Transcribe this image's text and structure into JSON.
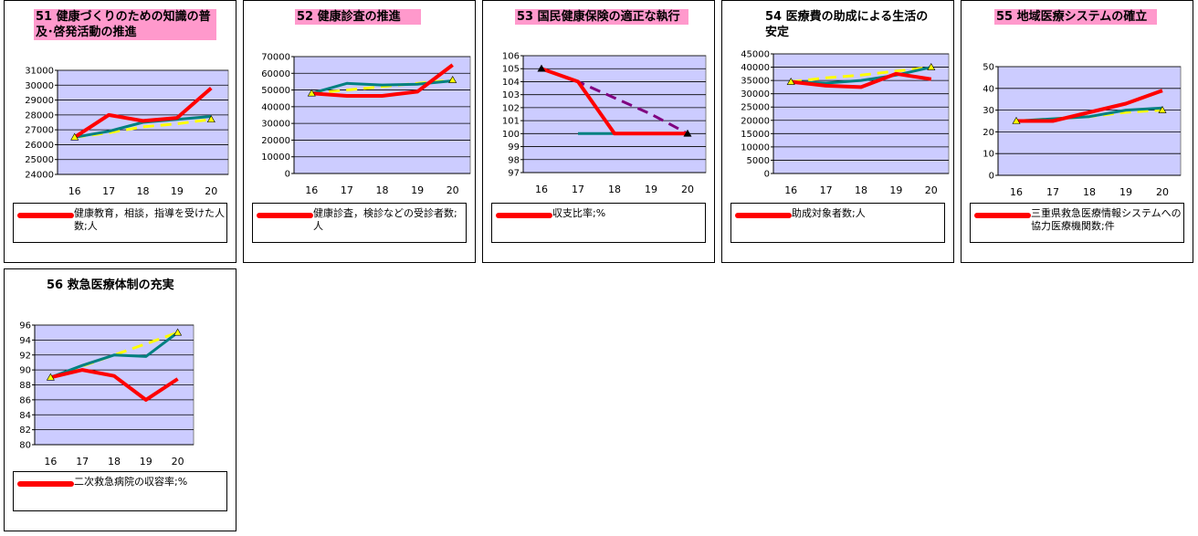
{
  "chart_data": [
    {
      "type": "line",
      "title": "51 健康づくりのための知識の普及･啓発活動の推進",
      "categories": [
        "16",
        "17",
        "18",
        "19",
        "20"
      ],
      "ylim": [
        24000,
        31000
      ],
      "yticks": [
        24000,
        25000,
        26000,
        27000,
        28000,
        29000,
        30000,
        31000
      ],
      "grid": true,
      "series": [
        {
          "name": "健康教育，相談，指導を受けた人数;人",
          "color": "#ff0000",
          "style": "solid",
          "values": [
            26500,
            28000,
            27600,
            27800,
            29800
          ]
        },
        {
          "color": "#008080",
          "style": "solid",
          "values": [
            26500,
            26900,
            27500,
            27700,
            27900
          ]
        },
        {
          "color": "#ffff00",
          "style": "dashed",
          "values": [
            26500,
            26800,
            27200,
            27400,
            27700
          ]
        }
      ]
    },
    {
      "type": "line",
      "title": "52 健康診査の推進",
      "categories": [
        "16",
        "17",
        "18",
        "19",
        "20"
      ],
      "ylim": [
        0,
        70000
      ],
      "yticks": [
        0,
        10000,
        20000,
        30000,
        40000,
        50000,
        60000,
        70000
      ],
      "grid": true,
      "series": [
        {
          "name": "健康診査，検診などの受診者数;人",
          "color": "#ff0000",
          "style": "solid",
          "values": [
            48000,
            46500,
            46500,
            49000,
            65000
          ]
        },
        {
          "color": "#008080",
          "style": "solid",
          "values": [
            48000,
            54000,
            53000,
            53500,
            55500
          ]
        },
        {
          "color": "#ffff00",
          "style": "dashed",
          "values": [
            48000,
            50000,
            52000,
            54000,
            56000
          ]
        }
      ]
    },
    {
      "type": "line",
      "title": "53 国民健康保険の適正な執行",
      "categories": [
        "16",
        "17",
        "18",
        "19",
        "20"
      ],
      "ylim": [
        97,
        106
      ],
      "yticks": [
        97,
        98,
        99,
        100,
        101,
        102,
        103,
        104,
        105,
        106
      ],
      "grid": true,
      "series": [
        {
          "name": "収支比率;%",
          "color": "#ff0000",
          "style": "solid",
          "values": [
            105,
            104,
            100,
            100,
            100
          ]
        },
        {
          "color": "#008080",
          "style": "solid",
          "values": [
            null,
            100,
            100,
            100,
            100
          ]
        },
        {
          "color": "#800080",
          "style": "dashed",
          "values": [
            105,
            104,
            102.75,
            101.5,
            100
          ]
        }
      ]
    },
    {
      "type": "line",
      "title": "54 医療費の助成による生活の安定",
      "categories": [
        "16",
        "17",
        "18",
        "19",
        "20"
      ],
      "ylim": [
        0,
        45000
      ],
      "yticks": [
        0,
        5000,
        10000,
        15000,
        20000,
        25000,
        30000,
        35000,
        40000,
        45000
      ],
      "grid": true,
      "series": [
        {
          "name": "助成対象者数;人",
          "color": "#ff0000",
          "style": "solid",
          "values": [
            34500,
            33000,
            32500,
            37500,
            35500
          ]
        },
        {
          "color": "#008080",
          "style": "solid",
          "values": [
            34500,
            34000,
            35000,
            37000,
            40000
          ]
        },
        {
          "color": "#ffff00",
          "style": "dashed",
          "values": [
            34500,
            36000,
            37000,
            38500,
            40000
          ]
        }
      ]
    },
    {
      "type": "line",
      "title": "55 地域医療システムの確立",
      "categories": [
        "16",
        "17",
        "18",
        "19",
        "20"
      ],
      "ylim": [
        0,
        50
      ],
      "yticks": [
        0,
        10,
        20,
        30,
        40,
        50
      ],
      "grid": true,
      "series": [
        {
          "name": "三重県救急医療情報システムへの協力医療機関数;件",
          "color": "#ff0000",
          "style": "solid",
          "values": [
            25,
            25,
            29,
            33,
            39
          ]
        },
        {
          "color": "#008080",
          "style": "solid",
          "values": [
            25,
            26,
            27,
            30,
            31
          ]
        },
        {
          "color": "#ffff00",
          "style": "dashed",
          "values": [
            25,
            26,
            27,
            29,
            30
          ]
        }
      ]
    },
    {
      "type": "line",
      "title": "56 救急医療体制の充実",
      "categories": [
        "16",
        "17",
        "18",
        "19",
        "20"
      ],
      "ylim": [
        80,
        96
      ],
      "yticks": [
        80,
        82,
        84,
        86,
        88,
        90,
        92,
        94,
        96
      ],
      "grid": true,
      "series": [
        {
          "name": "二次救急病院の収容率;%",
          "color": "#ff0000",
          "style": "solid",
          "values": [
            89,
            90,
            89.2,
            86,
            88.8
          ]
        },
        {
          "color": "#008080",
          "style": "solid",
          "values": [
            89,
            90.6,
            92,
            91.8,
            95
          ]
        },
        {
          "color": "#ffff00",
          "style": "dashed",
          "values": [
            89,
            90.5,
            92,
            93.5,
            95
          ]
        }
      ]
    }
  ]
}
